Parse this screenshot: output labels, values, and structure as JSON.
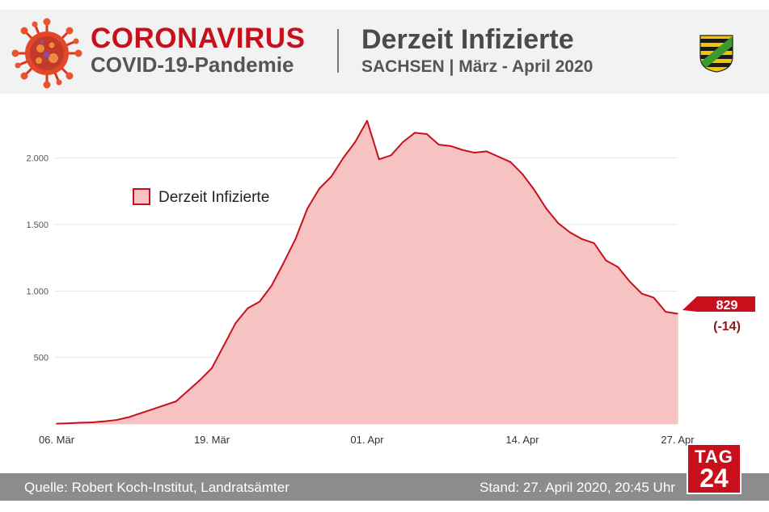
{
  "header": {
    "title_main": "CORONAVIRUS",
    "title_sub": "COVID-19-Pandemie",
    "chart_title": "Derzeit Infizierte",
    "chart_subtitle": "SACHSEN | März - April 2020",
    "crest_icon": "saxony-coat-of-arms-icon",
    "virus_icon": "coronavirus-icon"
  },
  "colors": {
    "brand_red": "#c8101c",
    "line": "#c8101c",
    "area_fill": "#f7c2c2",
    "marker_line": "#8b1a1a",
    "change_text": "#8b1a1a"
  },
  "chart_data": {
    "type": "area",
    "title": "Derzeit Infizierte",
    "subtitle": "SACHSEN | März - April 2020",
    "x": [
      "06.03",
      "07.03",
      "08.03",
      "09.03",
      "10.03",
      "11.03",
      "12.03",
      "13.03",
      "14.03",
      "15.03",
      "16.03",
      "17.03",
      "18.03",
      "19.03",
      "20.03",
      "21.03",
      "22.03",
      "23.03",
      "24.03",
      "25.03",
      "26.03",
      "27.03",
      "28.03",
      "29.03",
      "30.03",
      "31.03",
      "01.04",
      "02.04",
      "03.04",
      "04.04",
      "05.04",
      "06.04",
      "07.04",
      "08.04",
      "09.04",
      "10.04",
      "11.04",
      "12.04",
      "13.04",
      "14.04",
      "15.04",
      "16.04",
      "17.04",
      "18.04",
      "19.04",
      "20.04",
      "21.04",
      "22.04",
      "23.04",
      "24.04",
      "25.04",
      "26.04",
      "27.04"
    ],
    "series": [
      {
        "name": "Derzeit Infizierte",
        "values": [
          2,
          5,
          10,
          12,
          20,
          30,
          50,
          80,
          110,
          140,
          170,
          250,
          330,
          420,
          590,
          760,
          870,
          920,
          1040,
          1210,
          1390,
          1620,
          1770,
          1860,
          2000,
          2120,
          2280,
          1990,
          2020,
          2120,
          2190,
          2180,
          2100,
          2090,
          2060,
          2040,
          2050,
          2010,
          1970,
          1880,
          1760,
          1620,
          1510,
          1440,
          1390,
          1360,
          1230,
          1180,
          1070,
          980,
          950,
          843,
          829
        ]
      }
    ],
    "xticks": [
      {
        "index": 0,
        "label": "06. Mär"
      },
      {
        "index": 13,
        "label": "19. Mär"
      },
      {
        "index": 26,
        "label": "01. Apr"
      },
      {
        "index": 39,
        "label": "14. Apr"
      },
      {
        "index": 52,
        "label": "27. Apr"
      }
    ],
    "yticks": [
      {
        "value": 500,
        "label": "500"
      },
      {
        "value": 1000,
        "label": "1.000"
      },
      {
        "value": 1500,
        "label": "1.500"
      },
      {
        "value": 2000,
        "label": "2.000"
      }
    ],
    "ylim": [
      0,
      2350
    ],
    "grid": true,
    "legend": {
      "label": "Derzeit Infizierte",
      "placement": "top-left"
    },
    "last_value_label": "829",
    "last_change_label": "(-14)"
  },
  "footer": {
    "source": "Quelle: Robert Koch-Institut, Landratsämter",
    "date": "Stand: 27. April 2020, 20:45 Uhr"
  },
  "logo": {
    "line1": "TAG",
    "line2": "24"
  }
}
